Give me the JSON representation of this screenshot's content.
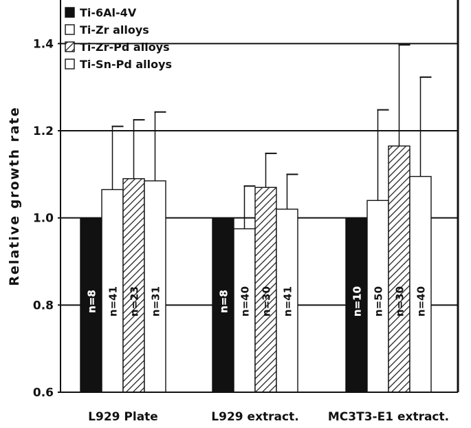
{
  "chart_data": {
    "type": "bar",
    "title": "",
    "xlabel": "",
    "ylabel": "Relative growth rate",
    "ylim": [
      0.6,
      1.5
    ],
    "yticks": [
      0.6,
      0.8,
      1.0,
      1.2,
      1.4
    ],
    "ytick_labels": [
      "0.6",
      "0.8",
      "1.0",
      "1.2",
      "1.4"
    ],
    "grid": "horizontal lines at 1.0, 1.2 and 1.4",
    "legend_position": "top-left",
    "categories": [
      "L929  Plate",
      "L929  extract.",
      "MC3T3-E1  extract."
    ],
    "series": [
      {
        "name": "Ti-6Al-4V",
        "fill": "solid-black",
        "values": [
          1.0,
          1.0,
          1.0
        ],
        "errors": [
          null,
          null,
          null
        ],
        "n_labels": [
          "n=8",
          "n=8",
          "n=10"
        ]
      },
      {
        "name": "Ti-Zr alloys",
        "fill": "white",
        "values": [
          1.065,
          0.975,
          1.04
        ],
        "errors": [
          0.145,
          0.098,
          0.208
        ],
        "n_labels": [
          "n=41",
          "n=40",
          "n=50"
        ]
      },
      {
        "name": "Ti-Zr-Pd alloys",
        "fill": "hatched",
        "values": [
          1.09,
          1.07,
          1.165
        ],
        "errors": [
          0.135,
          0.078,
          0.232
        ],
        "n_labels": [
          "n=23",
          "n=30",
          "n=30"
        ]
      },
      {
        "name": "Ti-Sn-Pd alloys",
        "fill": "white",
        "values": [
          1.085,
          1.02,
          1.095
        ],
        "errors": [
          0.158,
          0.08,
          0.228
        ],
        "n_labels": [
          "n=31",
          "n=41",
          "n=40"
        ]
      }
    ],
    "colors": {
      "black": "#111111",
      "white": "#ffffff",
      "grid": "#111111",
      "hatch": "#222222"
    }
  }
}
